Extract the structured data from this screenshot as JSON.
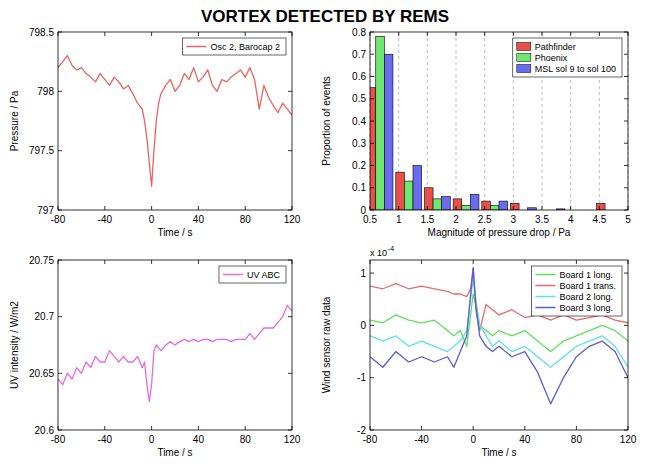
{
  "title": "VORTEX DETECTED BY REMS",
  "chart_data": [
    {
      "type": "line",
      "xlabel": "Time / s",
      "ylabel": "Pressure / Pa",
      "x": [
        -80,
        -76,
        -72,
        -68,
        -64,
        -60,
        -56,
        -52,
        -48,
        -44,
        -40,
        -36,
        -32,
        -28,
        -24,
        -20,
        -16,
        -12,
        -8,
        -6,
        -4,
        -2,
        0,
        2,
        4,
        6,
        8,
        12,
        16,
        20,
        24,
        28,
        32,
        36,
        40,
        44,
        48,
        52,
        56,
        60,
        64,
        68,
        72,
        76,
        80,
        84,
        88,
        92,
        96,
        100,
        104,
        108,
        112,
        116,
        120
      ],
      "series": [
        {
          "name": "Osc 2, Barocap 2",
          "color": "#e8645f",
          "values": [
            798.2,
            798.25,
            798.3,
            798.22,
            798.18,
            798.2,
            798.15,
            798.12,
            798.08,
            798.15,
            798.1,
            798.05,
            798.12,
            798.08,
            798.02,
            798.05,
            797.98,
            797.9,
            797.85,
            797.75,
            797.6,
            797.4,
            797.2,
            797.5,
            797.75,
            797.9,
            797.98,
            798.05,
            798.1,
            798.0,
            798.05,
            798.15,
            798.1,
            798.2,
            798.08,
            798.12,
            798.18,
            798.05,
            798.0,
            798.1,
            798.08,
            798.12,
            798.15,
            798.18,
            798.12,
            798.2,
            798.1,
            797.85,
            798.05,
            797.95,
            797.88,
            797.82,
            797.9,
            797.85,
            797.8
          ]
        }
      ],
      "xlim": [
        -80,
        120
      ],
      "ylim": [
        797,
        798.5
      ],
      "xticks": [
        -80,
        -40,
        0,
        40,
        80,
        120
      ],
      "yticks": [
        797,
        797.5,
        798,
        798.5
      ],
      "legend": "upper right",
      "grid": false
    },
    {
      "type": "bar",
      "xlabel": "Magnitude of pressure drop / Pa",
      "ylabel": "Proportion of events",
      "x": [
        0.75,
        1.25,
        1.75,
        2.25,
        2.75,
        3.25,
        3.75,
        4.25,
        4.75
      ],
      "series": [
        {
          "name": "Pathfinder",
          "color": "#e8504a",
          "values": [
            0.55,
            0.17,
            0.1,
            0.05,
            0.04,
            0.03,
            0,
            0,
            0.03
          ]
        },
        {
          "name": "Phoenix",
          "color": "#6fe86f",
          "values": [
            0.78,
            0.13,
            0.05,
            0.02,
            0.02,
            0,
            0,
            0,
            0
          ]
        },
        {
          "name": "MSL sol 9 to sol 100",
          "color": "#6b6bf0",
          "values": [
            0.7,
            0.2,
            0.06,
            0.07,
            0.04,
            0.01,
            0.005,
            0,
            0
          ]
        }
      ],
      "xlim": [
        0.5,
        5
      ],
      "ylim": [
        0,
        0.8
      ],
      "xticks": [
        0.5,
        1,
        1.5,
        2,
        2.5,
        3,
        3.5,
        4,
        4.5,
        5
      ],
      "yticks": [
        0,
        0.1,
        0.2,
        0.3,
        0.4,
        0.5,
        0.6,
        0.7,
        0.8
      ],
      "legend": "upper right",
      "grid": true
    },
    {
      "type": "line",
      "xlabel": "Time / s",
      "ylabel": "UV intensity / W/m2",
      "x": [
        -80,
        -76,
        -72,
        -68,
        -64,
        -60,
        -56,
        -52,
        -48,
        -44,
        -40,
        -36,
        -32,
        -28,
        -24,
        -20,
        -16,
        -12,
        -8,
        -6,
        -4,
        -2,
        0,
        2,
        4,
        8,
        12,
        16,
        20,
        24,
        28,
        32,
        36,
        40,
        44,
        48,
        52,
        56,
        60,
        64,
        68,
        72,
        76,
        80,
        84,
        88,
        92,
        96,
        100,
        104,
        108,
        112,
        116,
        120
      ],
      "series": [
        {
          "name": "UV ABC",
          "color": "#e46be4",
          "values": [
            20.645,
            20.64,
            20.65,
            20.645,
            20.655,
            20.65,
            20.66,
            20.655,
            20.665,
            20.66,
            20.66,
            20.67,
            20.665,
            20.66,
            20.665,
            20.66,
            20.66,
            20.665,
            20.655,
            20.66,
            20.64,
            20.625,
            20.64,
            20.67,
            20.675,
            20.67,
            20.675,
            20.678,
            20.675,
            20.678,
            20.68,
            20.678,
            20.68,
            20.678,
            20.68,
            20.68,
            20.678,
            20.68,
            20.68,
            20.68,
            20.678,
            20.68,
            20.68,
            20.68,
            20.685,
            20.68,
            20.685,
            20.69,
            20.69,
            20.69,
            20.695,
            20.7,
            20.71,
            20.705
          ]
        }
      ],
      "xlim": [
        -80,
        120
      ],
      "ylim": [
        20.6,
        20.75
      ],
      "xticks": [
        -80,
        -40,
        0,
        40,
        80,
        120
      ],
      "yticks": [
        20.6,
        20.65,
        20.7,
        20.75
      ],
      "legend": "upper right",
      "grid": false
    },
    {
      "type": "line",
      "xlabel": "Time / s",
      "ylabel": "Wind sensor raw data",
      "annotations": [
        "x 10",
        "-4"
      ],
      "x": [
        -80,
        -70,
        -60,
        -50,
        -40,
        -30,
        -20,
        -15,
        -10,
        -5,
        -2,
        0,
        2,
        5,
        10,
        15,
        20,
        30,
        40,
        50,
        60,
        70,
        80,
        90,
        100,
        110,
        120
      ],
      "series": [
        {
          "name": "Board 1 long.",
          "color": "#5ee05e",
          "values": [
            0.1,
            0.05,
            0.2,
            0.1,
            0.05,
            0.1,
            -0.1,
            -0.2,
            -0.1,
            -0.4,
            0.2,
            0.6,
            0.4,
            0.0,
            -0.1,
            -0.2,
            -0.1,
            -0.2,
            -0.1,
            -0.3,
            -0.5,
            -0.3,
            -0.2,
            -0.1,
            0.0,
            -0.1,
            -0.3
          ]
        },
        {
          "name": "Board 1 trans.",
          "color": "#e86a6a",
          "values": [
            0.75,
            0.7,
            0.8,
            0.7,
            0.75,
            0.7,
            0.65,
            0.6,
            0.6,
            0.55,
            0.7,
            1.1,
            0.3,
            -0.1,
            0.4,
            0.3,
            0.2,
            0.3,
            0.15,
            0.2,
            0.1,
            0.2,
            0.1,
            0.15,
            0.2,
            0.1,
            0.05
          ]
        },
        {
          "name": "Board 2 long.",
          "color": "#5fe0e8",
          "values": [
            -0.2,
            -0.3,
            -0.2,
            -0.4,
            -0.3,
            -0.4,
            -0.5,
            -0.4,
            -0.3,
            -0.1,
            0.5,
            0.9,
            0.5,
            0.0,
            -0.2,
            -0.4,
            -0.3,
            -0.5,
            -0.4,
            -0.6,
            -0.8,
            -0.6,
            -0.4,
            -0.3,
            -0.2,
            -0.4,
            -0.8
          ]
        },
        {
          "name": "Board 3 long.",
          "color": "#5a5ad6",
          "values": [
            -0.6,
            -0.8,
            -0.5,
            -0.7,
            -0.6,
            -0.7,
            -0.6,
            -0.8,
            -0.5,
            -0.2,
            0.6,
            1.1,
            0.4,
            -0.2,
            -0.4,
            -0.5,
            -0.4,
            -0.6,
            -0.5,
            -0.9,
            -1.5,
            -1.0,
            -0.6,
            -0.4,
            -0.3,
            -0.5,
            -1.0
          ]
        }
      ],
      "xlim": [
        -80,
        120
      ],
      "ylim": [
        -2,
        1.25
      ],
      "xticks": [
        -80,
        -40,
        0,
        40,
        80,
        120
      ],
      "yticks": [
        -2,
        -1,
        0,
        1
      ],
      "legend": "upper right",
      "grid": false
    }
  ]
}
